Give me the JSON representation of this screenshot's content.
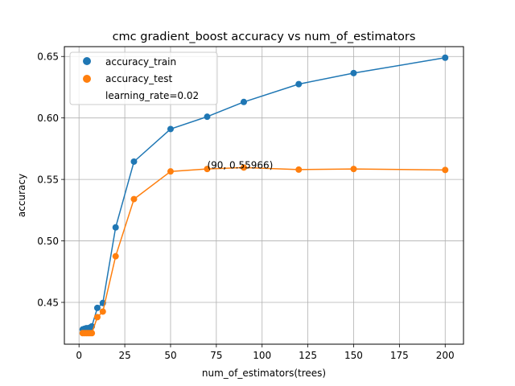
{
  "chart_data": {
    "type": "line",
    "title": "cmc gradient_boost accuracy vs num_of_estimators",
    "xlabel": "num_of_estimators(trees)",
    "ylabel": "accuracy",
    "xlim": [
      -8,
      210
    ],
    "ylim": [
      0.416,
      0.658
    ],
    "xticks": [
      0,
      25,
      50,
      75,
      100,
      125,
      150,
      175,
      200
    ],
    "yticks": [
      0.45,
      0.5,
      0.55,
      0.6,
      0.65
    ],
    "ytick_labels": [
      "0.45",
      "0.50",
      "0.55",
      "0.60",
      "0.65"
    ],
    "grid": true,
    "legend_position": "top-left",
    "x": [
      2,
      3,
      4,
      5,
      6,
      7,
      10,
      13,
      20,
      30,
      50,
      70,
      90,
      120,
      150,
      200
    ],
    "series": [
      {
        "name": "accuracy_train",
        "color": "#1f77b4",
        "values": [
          0.428,
          0.4285,
          0.429,
          0.429,
          0.4295,
          0.4305,
          0.4455,
          0.4495,
          0.511,
          0.5645,
          0.591,
          0.601,
          0.613,
          0.6275,
          0.6365,
          0.649
        ]
      },
      {
        "name": "accuracy_test",
        "color": "#ff7f0e",
        "values": [
          0.425,
          0.425,
          0.425,
          0.425,
          0.425,
          0.425,
          0.438,
          0.4425,
          0.4875,
          0.534,
          0.5565,
          0.5585,
          0.55966,
          0.558,
          0.5585,
          0.5577
        ]
      }
    ],
    "legend_note": "learning_rate=0.02",
    "annotation": {
      "text": "(90, 0.55966)",
      "x": 70,
      "y": 0.561
    }
  }
}
